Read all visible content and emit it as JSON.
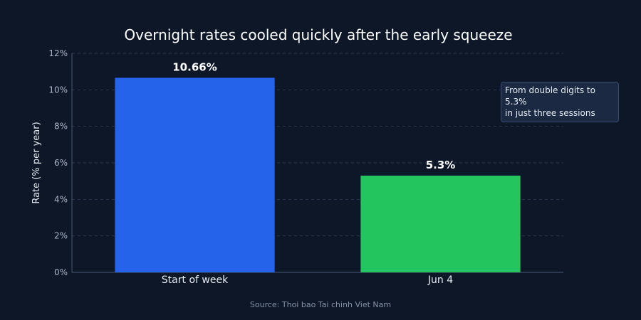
{
  "chart_data": {
    "type": "bar",
    "title": "Overnight rates cooled quickly after the early squeeze",
    "ylabel": "Rate (% per year)",
    "xlabel": "",
    "categories": [
      "Start of week",
      "Jun 4"
    ],
    "values": [
      10.66,
      5.3
    ],
    "data_labels": [
      "10.66%",
      "5.3%"
    ],
    "bar_colors": [
      "#2563eb",
      "#22c55e"
    ],
    "ylim": [
      0,
      12
    ],
    "y_ticks": [
      0,
      2,
      4,
      6,
      8,
      10,
      12
    ],
    "y_tick_format": "{v}%",
    "grid": true,
    "legend": "none",
    "annotation": "From double digits to 5.3%\nin just three sessions",
    "source": "Source: Thoi bao Tai chinh Viet Nam"
  }
}
